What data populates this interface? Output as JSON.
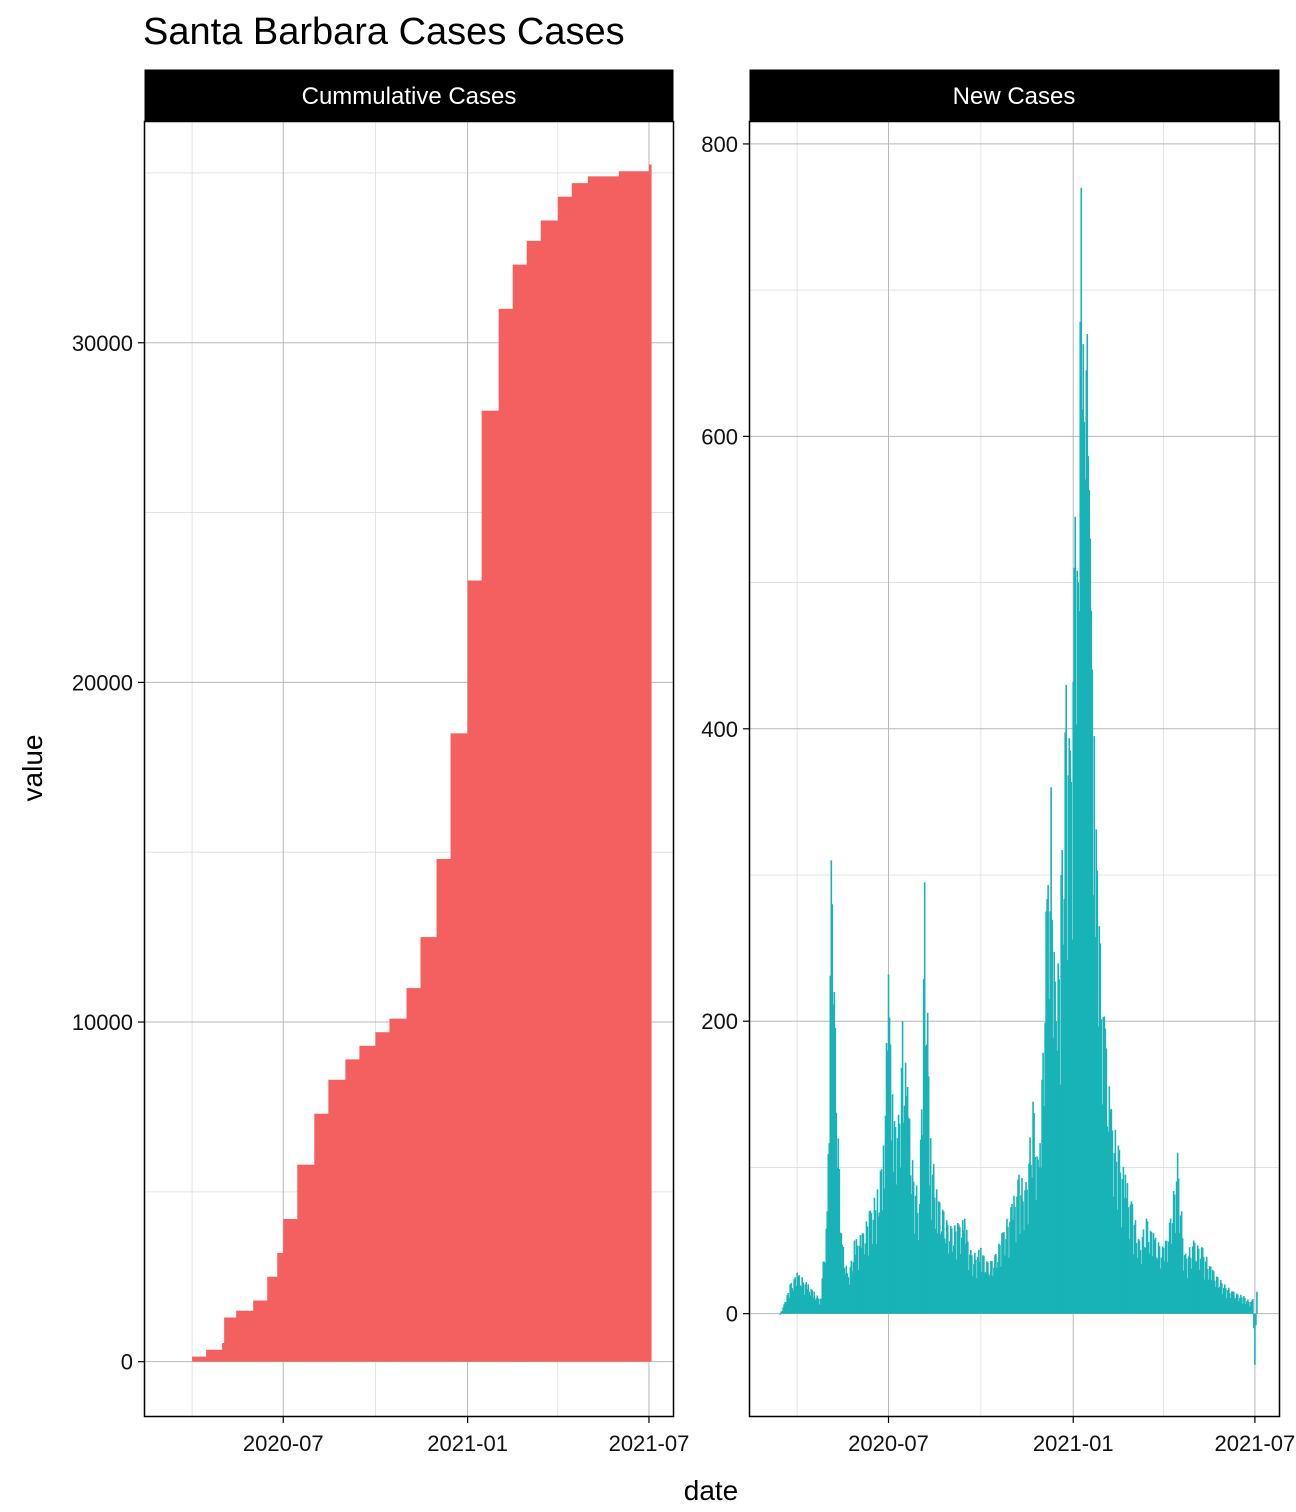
{
  "title": "Santa Barbara Cases Cases",
  "xlabel": "date",
  "ylabel": "value",
  "colors": {
    "cumulative": "#F3605F",
    "new": "#19B3B7",
    "strip": "#000000",
    "grid": "#bdbdbd"
  },
  "chart_data": [
    {
      "type": "bar",
      "panel": "Cummulative Cases",
      "x_ticks": [
        "2020-07",
        "2021-01",
        "2021-07"
      ],
      "y_ticks": [
        0,
        10000,
        20000,
        30000
      ],
      "xlim": [
        "2020-02-14",
        "2021-07-25"
      ],
      "ylim": [
        -1600,
        36500
      ],
      "grid": true,
      "x": [
        "2020-03-15",
        "2020-04-01",
        "2020-04-15",
        "2020-05-01",
        "2020-05-03",
        "2020-05-15",
        "2020-06-01",
        "2020-06-15",
        "2020-06-25",
        "2020-07-01",
        "2020-07-15",
        "2020-08-01",
        "2020-08-15",
        "2020-09-01",
        "2020-09-15",
        "2020-10-01",
        "2020-10-15",
        "2020-11-01",
        "2020-11-15",
        "2020-12-01",
        "2020-12-15",
        "2021-01-01",
        "2021-01-15",
        "2021-02-01",
        "2021-02-15",
        "2021-03-01",
        "2021-03-15",
        "2021-04-01",
        "2021-04-15",
        "2021-05-01",
        "2021-06-01",
        "2021-07-01"
      ],
      "y": [
        0,
        150,
        350,
        550,
        1300,
        1500,
        1800,
        2500,
        3200,
        4200,
        5800,
        7300,
        8300,
        8900,
        9300,
        9700,
        10100,
        11000,
        12500,
        14800,
        18500,
        23000,
        28000,
        31000,
        32300,
        33000,
        33600,
        34300,
        34700,
        34900,
        35050,
        35250
      ]
    },
    {
      "type": "bar",
      "panel": "New Cases",
      "x_ticks": [
        "2020-07",
        "2021-01",
        "2021-07"
      ],
      "y_ticks": [
        0,
        200,
        400,
        600,
        800
      ],
      "xlim": [
        "2020-02-14",
        "2021-07-25"
      ],
      "ylim": [
        -70,
        815
      ],
      "grid": true,
      "x": [
        "2020-03-15",
        "2020-03-20",
        "2020-03-25",
        "2020-04-01",
        "2020-04-06",
        "2020-04-12",
        "2020-04-18",
        "2020-04-24",
        "2020-05-01",
        "2020-05-05",
        "2020-05-08",
        "2020-05-15",
        "2020-05-22",
        "2020-05-28",
        "2020-06-05",
        "2020-06-12",
        "2020-06-20",
        "2020-06-26",
        "2020-07-01",
        "2020-07-05",
        "2020-07-10",
        "2020-07-15",
        "2020-07-20",
        "2020-07-25",
        "2020-08-01",
        "2020-08-06",
        "2020-08-12",
        "2020-08-18",
        "2020-08-25",
        "2020-09-01",
        "2020-09-08",
        "2020-09-15",
        "2020-09-22",
        "2020-10-01",
        "2020-10-08",
        "2020-10-15",
        "2020-10-22",
        "2020-11-01",
        "2020-11-08",
        "2020-11-15",
        "2020-11-22",
        "2020-11-28",
        "2020-12-01",
        "2020-12-05",
        "2020-12-10",
        "2020-12-15",
        "2020-12-20",
        "2020-12-25",
        "2020-12-29",
        "2021-01-03",
        "2021-01-06",
        "2021-01-09",
        "2021-01-12",
        "2021-01-15",
        "2021-01-18",
        "2021-01-22",
        "2021-01-27",
        "2021-02-02",
        "2021-02-08",
        "2021-02-15",
        "2021-02-22",
        "2021-03-01",
        "2021-03-08",
        "2021-03-15",
        "2021-03-22",
        "2021-04-01",
        "2021-04-08",
        "2021-04-15",
        "2021-04-22",
        "2021-05-01",
        "2021-05-10",
        "2021-05-20",
        "2021-06-01",
        "2021-06-10",
        "2021-06-20",
        "2021-06-27",
        "2021-06-29",
        "2021-07-01",
        "2021-07-03"
      ],
      "y": [
        0,
        8,
        20,
        28,
        25,
        20,
        15,
        10,
        70,
        310,
        220,
        55,
        25,
        50,
        55,
        70,
        85,
        115,
        232,
        150,
        120,
        200,
        155,
        105,
        75,
        295,
        120,
        85,
        70,
        60,
        62,
        65,
        40,
        45,
        35,
        40,
        55,
        75,
        95,
        90,
        145,
        100,
        160,
        275,
        360,
        200,
        300,
        430,
        385,
        545,
        500,
        770,
        610,
        670,
        530,
        395,
        265,
        195,
        140,
        115,
        95,
        75,
        50,
        65,
        55,
        45,
        65,
        110,
        40,
        50,
        45,
        30,
        20,
        15,
        12,
        8,
        10,
        -35,
        15
      ]
    }
  ]
}
